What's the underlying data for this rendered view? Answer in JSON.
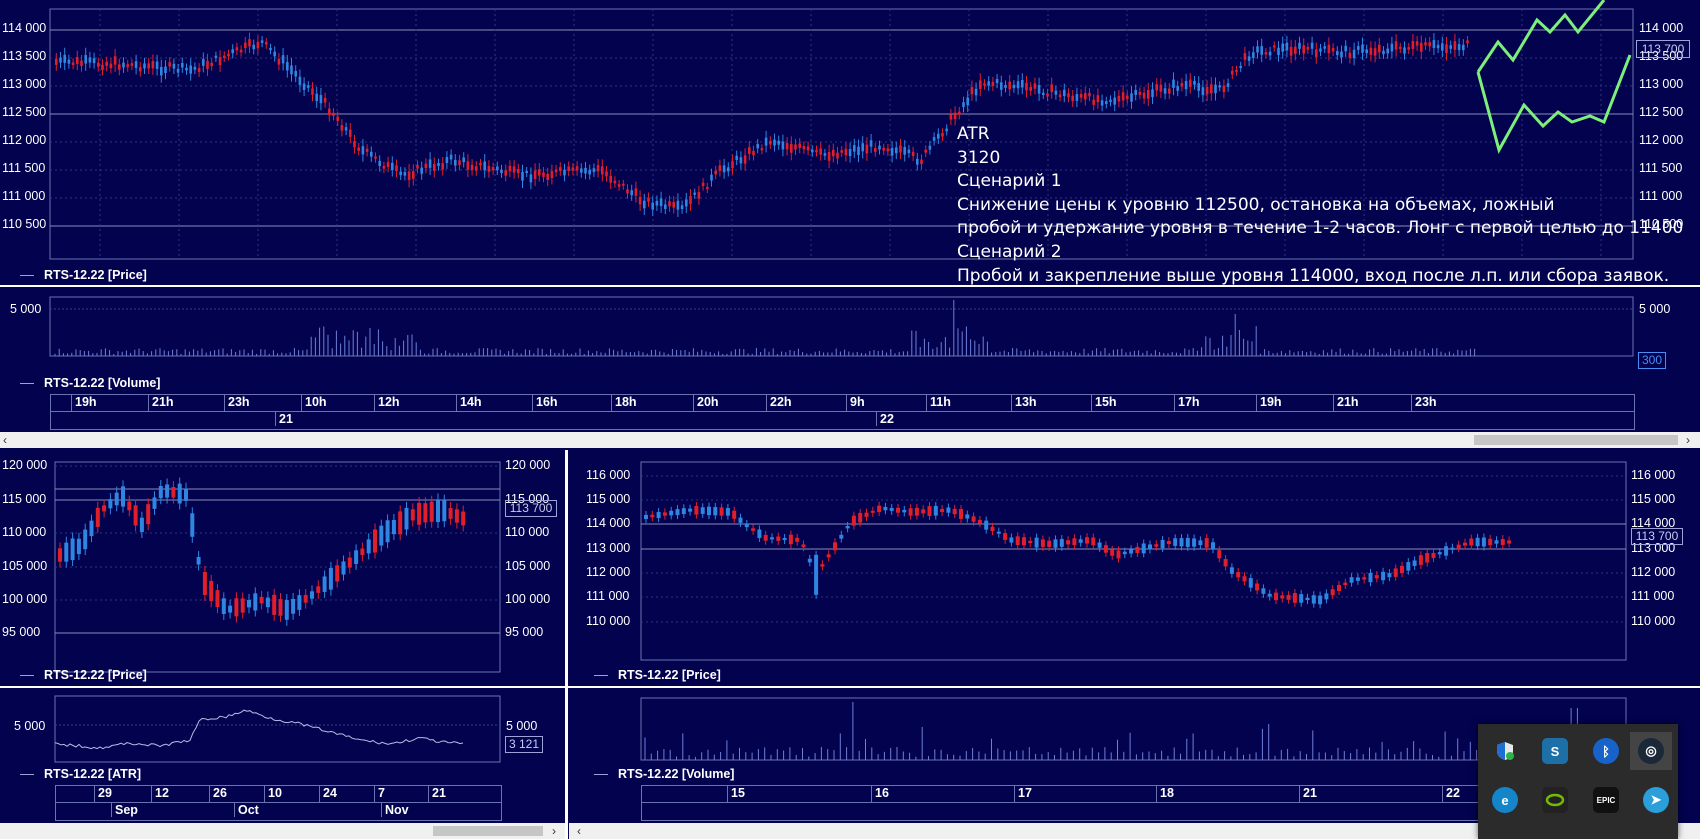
{
  "colors": {
    "bg": "#02024e",
    "up": "#2f86e0",
    "down": "#e01f2b",
    "grid": "#3a3f8a",
    "volume": "#6f7fd8",
    "scenario_line": "#7cf07a"
  },
  "top_price": {
    "legend": "RTS-12.22 [Price]",
    "y_ticks": [
      "114 000",
      "113 500",
      "113 000",
      "112 500",
      "112 000",
      "111 500",
      "111 000",
      "110 500"
    ],
    "current_price": "113 700"
  },
  "top_volume": {
    "legend": "RTS-12.22 [Volume]",
    "y_tick": "5 000",
    "current_value": "300",
    "time_ticks": [
      "19h",
      "21h",
      "23h",
      "10h",
      "12h",
      "14h",
      "16h",
      "18h",
      "20h",
      "22h",
      "9h",
      "11h",
      "13h",
      "15h",
      "17h",
      "19h",
      "21h",
      "23h"
    ],
    "dates": [
      "21",
      "22"
    ]
  },
  "annotation": {
    "lines": [
      "ATR",
      "3120",
      "Сценарий 1",
      "Снижение цены к уровню 112500, остановка на объемах, ложный",
      "пробой и удержание уровня в течение  1-2 часов. Лонг с первой целью до 11400",
      "Сценарий 2",
      "Пробой и закрепление выше уровня 114000, вход после л.п. или сбора заявок."
    ]
  },
  "bottom_left_price": {
    "legend": "RTS-12.22 [Price]",
    "y_ticks": [
      "120 000",
      "115 000",
      "110 000",
      "105 000",
      "100 000",
      "95 000"
    ],
    "current_price": "113 700"
  },
  "bottom_left_atr": {
    "legend": "RTS-12.22 [ATR]",
    "y_tick": "5 000",
    "current_value": "3 121",
    "days": [
      "29",
      "12",
      "26",
      "10",
      "24",
      "7",
      "21"
    ],
    "months": [
      "Sep",
      "Oct",
      "Nov"
    ]
  },
  "bottom_right_price": {
    "legend": "RTS-12.22 [Price]",
    "y_ticks": [
      "116 000",
      "115 000",
      "114 000",
      "113 000",
      "112 000",
      "111 000",
      "110 000"
    ],
    "current_price": "113 700"
  },
  "bottom_right_volume": {
    "legend": "RTS-12.22 [Volume]",
    "days": [
      "15",
      "16",
      "17",
      "18",
      "21",
      "22"
    ]
  },
  "tray": {
    "icons": [
      "defender-icon",
      "sharex-icon",
      "bluetooth-icon",
      "steam-icon",
      "edge-update-icon",
      "nvidia-icon",
      "epic-games-icon",
      "telegram-icon"
    ],
    "labels": {
      "sharex": "S",
      "bluetooth": "ᛒ",
      "steam": "◎",
      "edge": "e",
      "epic": "EPIC",
      "telegram": "➤"
    }
  }
}
